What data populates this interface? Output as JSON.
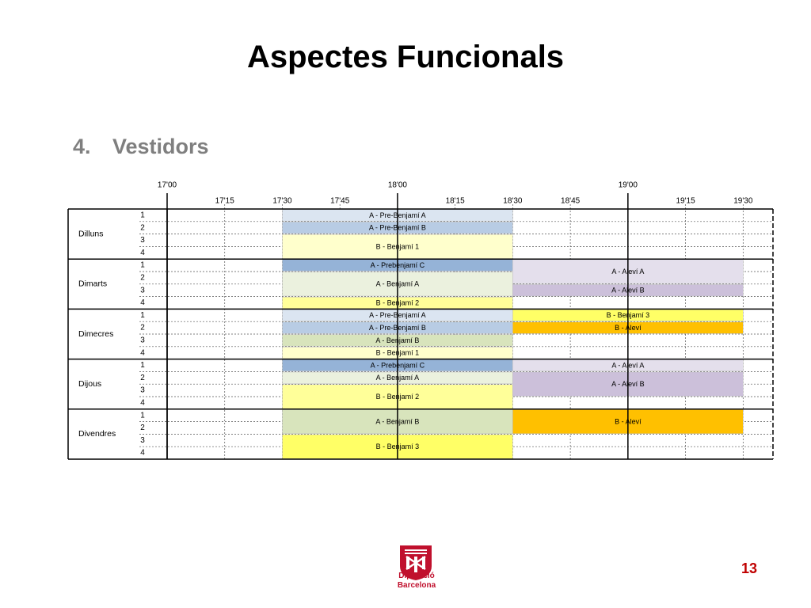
{
  "slide": {
    "title": "Aspectes Funcionals",
    "section_number": "4.",
    "section_title": "Vestidors",
    "page_number": "13",
    "logo_line1": "Diputació",
    "logo_line2": "Barcelona"
  },
  "schedule": {
    "major_times": [
      {
        "label": "17'00",
        "slot": 0
      },
      {
        "label": "18'00",
        "slot": 4
      },
      {
        "label": "19'00",
        "slot": 8
      }
    ],
    "minor_times": [
      {
        "label": "17'15",
        "slot": 1
      },
      {
        "label": "17'30",
        "slot": 2
      },
      {
        "label": "17'45",
        "slot": 3
      },
      {
        "label": "18'15",
        "slot": 5
      },
      {
        "label": "18'30",
        "slot": 6
      },
      {
        "label": "18'45",
        "slot": 7
      },
      {
        "label": "19'15",
        "slot": 9
      },
      {
        "label": "19'30",
        "slot": 10
      }
    ],
    "days": [
      {
        "name": "Dilluns",
        "rooms": [
          "1",
          "2",
          "3",
          "4"
        ],
        "bookings": [
          {
            "label": "A - Pre-Benjamí A",
            "room": 1,
            "rooms": 1,
            "start": 2,
            "end": 6,
            "color": "#dbe5f1"
          },
          {
            "label": "A - Pre-Benjamí B",
            "room": 2,
            "rooms": 1,
            "start": 2,
            "end": 6,
            "color": "#b8cce4"
          },
          {
            "label": "B - Benjamí 1",
            "room": 3,
            "rooms": 2,
            "start": 2,
            "end": 6,
            "color": "#ffffcc"
          }
        ]
      },
      {
        "name": "Dimarts",
        "rooms": [
          "1",
          "2",
          "3",
          "4"
        ],
        "bookings": [
          {
            "label": "A - Prebenjamí C",
            "room": 1,
            "rooms": 1,
            "start": 2,
            "end": 6,
            "color": "#95b3d7"
          },
          {
            "label": "A - Benjamí A",
            "room": 2,
            "rooms": 2,
            "start": 2,
            "end": 6,
            "color": "#ebf1de"
          },
          {
            "label": "B - Benjamí 2",
            "room": 4,
            "rooms": 1,
            "start": 2,
            "end": 6,
            "color": "#ffff99"
          },
          {
            "label": "A - Aleví A",
            "room": 1,
            "rooms": 2,
            "start": 6,
            "end": 10,
            "color": "#e4dfec"
          },
          {
            "label": "A - Aleví B",
            "room": 3,
            "rooms": 1,
            "start": 6,
            "end": 10,
            "color": "#ccc0da"
          }
        ]
      },
      {
        "name": "Dimecres",
        "rooms": [
          "1",
          "2",
          "3",
          "4"
        ],
        "bookings": [
          {
            "label": "A - Pre-Benjamí A",
            "room": 1,
            "rooms": 1,
            "start": 2,
            "end": 6,
            "color": "#dbe5f1"
          },
          {
            "label": "A - Pre-Benjamí B",
            "room": 2,
            "rooms": 1,
            "start": 2,
            "end": 6,
            "color": "#b8cce4"
          },
          {
            "label": "A - Benjamí B",
            "room": 3,
            "rooms": 1,
            "start": 2,
            "end": 6,
            "color": "#d8e4bc"
          },
          {
            "label": "B - Benjamí 1",
            "room": 4,
            "rooms": 1,
            "start": 2,
            "end": 6,
            "color": "#ffffcc"
          },
          {
            "label": "B - Benjamí 3",
            "room": 1,
            "rooms": 1,
            "start": 6,
            "end": 10,
            "color": "#ffff66"
          },
          {
            "label": "B - Aleví",
            "room": 2,
            "rooms": 1,
            "start": 6,
            "end": 10,
            "color": "#ffc000"
          }
        ]
      },
      {
        "name": "Dijous",
        "rooms": [
          "1",
          "2",
          "3",
          "4"
        ],
        "bookings": [
          {
            "label": "A - Prebenjamí C",
            "room": 1,
            "rooms": 1,
            "start": 2,
            "end": 6,
            "color": "#95b3d7"
          },
          {
            "label": "A - Benjamí A",
            "room": 2,
            "rooms": 1,
            "start": 2,
            "end": 6,
            "color": "#ebf1de"
          },
          {
            "label": "B - Benjamí 2",
            "room": 3,
            "rooms": 2,
            "start": 2,
            "end": 6,
            "color": "#ffff99"
          },
          {
            "label": "A - Aleví A",
            "room": 1,
            "rooms": 1,
            "start": 6,
            "end": 10,
            "color": "#e4dfec"
          },
          {
            "label": "A - Aleví B",
            "room": 2,
            "rooms": 2,
            "start": 6,
            "end": 10,
            "color": "#ccc0da"
          }
        ]
      },
      {
        "name": "Divendres",
        "rooms": [
          "1",
          "2",
          "3",
          "4"
        ],
        "bookings": [
          {
            "label": "A - Benjamí B",
            "room": 1,
            "rooms": 2,
            "start": 2,
            "end": 6,
            "color": "#d8e4bc"
          },
          {
            "label": "B - Benjamí 3",
            "room": 3,
            "rooms": 2,
            "start": 2,
            "end": 6,
            "color": "#ffff66"
          },
          {
            "label": "B - Aleví",
            "room": 1,
            "rooms": 2,
            "start": 6,
            "end": 10,
            "color": "#ffc000"
          }
        ]
      }
    ]
  }
}
